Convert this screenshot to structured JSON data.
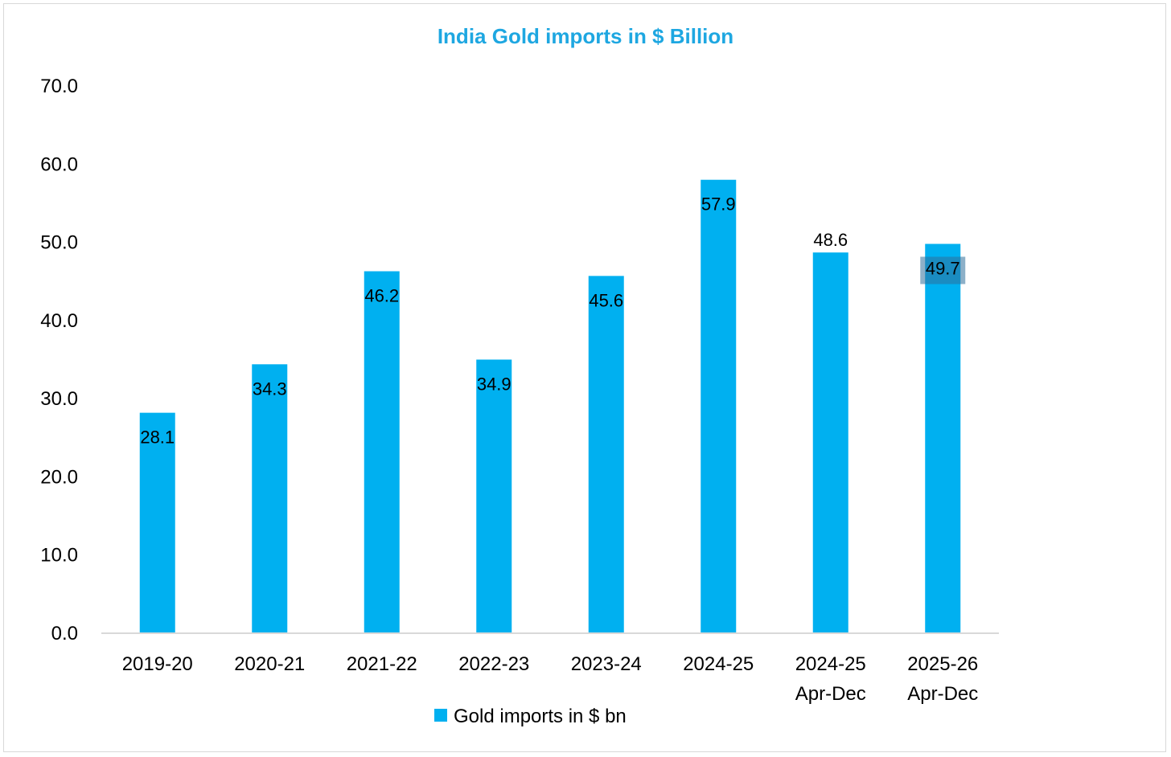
{
  "colors": {
    "bar": "#00b0f0",
    "title": "#1ea7e1",
    "axis": "#d9d9d9",
    "text": "#000000",
    "highlight": "#2f6f9a"
  },
  "chart_data": {
    "type": "bar",
    "title": "India Gold imports in $ Billion",
    "xlabel": "",
    "ylabel": "",
    "ylim": [
      0,
      70
    ],
    "y_ticks": [
      "0.0",
      "10.0",
      "20.0",
      "30.0",
      "40.0",
      "50.0",
      "60.0",
      "70.0"
    ],
    "categories": [
      [
        "2019-20"
      ],
      [
        "2020-21"
      ],
      [
        "2021-22"
      ],
      [
        "2022-23"
      ],
      [
        "2023-24"
      ],
      [
        "2024-25"
      ],
      [
        "2024-25",
        "Apr-Dec"
      ],
      [
        "2025-26",
        "Apr-Dec"
      ]
    ],
    "series": [
      {
        "name": "Gold imports in $ bn",
        "values": [
          28.1,
          34.3,
          46.2,
          34.9,
          45.6,
          57.9,
          48.6,
          49.7
        ],
        "labels": [
          "28.1",
          "34.3",
          "46.2",
          "34.9",
          "45.6",
          "57.9",
          "48.6",
          "49.7"
        ],
        "label_above": [
          false,
          false,
          false,
          false,
          false,
          false,
          true,
          false
        ],
        "label_highlighted": [
          false,
          false,
          false,
          false,
          false,
          false,
          false,
          true
        ]
      }
    ],
    "legend": "bottom-center",
    "grid": false
  }
}
